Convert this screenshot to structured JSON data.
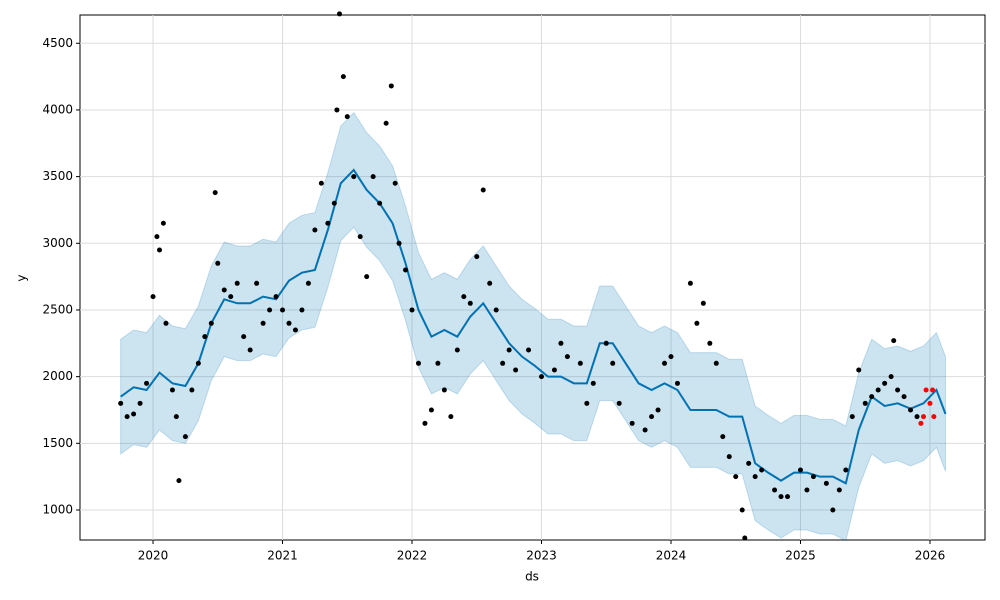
{
  "chart_data": {
    "type": "line",
    "x_label": "ds",
    "y_label": "y",
    "xlim": [
      2019.436,
      2026.425
    ],
    "ylim": [
      775,
      4712
    ],
    "xticks": [
      2020,
      2021,
      2022,
      2023,
      2024,
      2025,
      2026
    ],
    "yticks": [
      1000,
      1500,
      2000,
      2500,
      3000,
      3500,
      4000,
      4500
    ],
    "grid": true,
    "color": "#0072B2",
    "band_color": "#0072B2",
    "point_color": "#000000",
    "recent_color": "#ff0000",
    "x": [
      2019.75,
      2019.85,
      2019.95,
      2020.05,
      2020.15,
      2020.25,
      2020.35,
      2020.45,
      2020.55,
      2020.65,
      2020.75,
      2020.85,
      2020.95,
      2021.05,
      2021.15,
      2021.25,
      2021.35,
      2021.45,
      2021.55,
      2021.65,
      2021.75,
      2021.85,
      2021.95,
      2022.05,
      2022.15,
      2022.25,
      2022.35,
      2022.45,
      2022.55,
      2022.65,
      2022.75,
      2022.85,
      2022.95,
      2023.05,
      2023.15,
      2023.25,
      2023.35,
      2023.45,
      2023.55,
      2023.65,
      2023.75,
      2023.85,
      2023.95,
      2024.05,
      2024.15,
      2024.25,
      2024.35,
      2024.45,
      2024.55,
      2024.65,
      2024.75,
      2024.85,
      2024.95,
      2025.05,
      2025.15,
      2025.25,
      2025.35,
      2025.45,
      2025.55,
      2025.65,
      2025.75,
      2025.85,
      2025.95,
      2026.05,
      2026.12
    ],
    "values": [
      1850,
      1920,
      1900,
      2030,
      1950,
      1930,
      2100,
      2400,
      2580,
      2550,
      2550,
      2600,
      2580,
      2720,
      2780,
      2800,
      3100,
      3450,
      3550,
      3400,
      3300,
      3150,
      2850,
      2500,
      2300,
      2350,
      2300,
      2450,
      2550,
      2400,
      2250,
      2150,
      2080,
      2000,
      2000,
      1950,
      1950,
      2250,
      2250,
      2100,
      1950,
      1900,
      1950,
      1900,
      1750,
      1750,
      1750,
      1700,
      1700,
      1350,
      1280,
      1220,
      1280,
      1280,
      1250,
      1250,
      1200,
      1600,
      1850,
      1780,
      1800,
      1760,
      1800,
      1900,
      1720
    ],
    "lower": [
      1420,
      1490,
      1470,
      1600,
      1520,
      1500,
      1670,
      1970,
      2150,
      2120,
      2120,
      2170,
      2150,
      2290,
      2350,
      2370,
      2670,
      3020,
      3120,
      2970,
      2870,
      2720,
      2420,
      2070,
      1870,
      1920,
      1870,
      2020,
      2120,
      1970,
      1820,
      1720,
      1650,
      1570,
      1570,
      1520,
      1520,
      1820,
      1820,
      1670,
      1520,
      1470,
      1520,
      1470,
      1320,
      1320,
      1320,
      1270,
      1270,
      920,
      850,
      790,
      850,
      850,
      820,
      820,
      770,
      1170,
      1420,
      1350,
      1370,
      1330,
      1370,
      1470,
      1290
    ],
    "upper": [
      2280,
      2350,
      2330,
      2460,
      2380,
      2360,
      2530,
      2830,
      3010,
      2980,
      2980,
      3030,
      3010,
      3150,
      3210,
      3230,
      3530,
      3880,
      3980,
      3830,
      3730,
      3580,
      3280,
      2930,
      2730,
      2780,
      2730,
      2880,
      2980,
      2830,
      2680,
      2580,
      2510,
      2430,
      2430,
      2380,
      2380,
      2680,
      2680,
      2530,
      2380,
      2330,
      2380,
      2330,
      2180,
      2180,
      2180,
      2130,
      2130,
      1780,
      1710,
      1650,
      1710,
      1710,
      1680,
      1680,
      1630,
      2030,
      2280,
      2210,
      2230,
      2190,
      2230,
      2330,
      2150
    ],
    "points": {
      "x": [
        2019.75,
        2019.8,
        2019.85,
        2019.9,
        2019.95,
        2020.0,
        2020.03,
        2020.05,
        2020.08,
        2020.1,
        2020.15,
        2020.18,
        2020.2,
        2020.25,
        2020.3,
        2020.35,
        2020.4,
        2020.45,
        2020.48,
        2020.5,
        2020.55,
        2020.6,
        2020.65,
        2020.7,
        2020.75,
        2020.8,
        2020.85,
        2020.9,
        2020.95,
        2021.0,
        2021.05,
        2021.1,
        2021.15,
        2021.2,
        2021.25,
        2021.3,
        2021.35,
        2021.4,
        2021.42,
        2021.44,
        2021.47,
        2021.5,
        2021.55,
        2021.6,
        2021.65,
        2021.7,
        2021.75,
        2021.8,
        2021.84,
        2021.87,
        2021.9,
        2021.95,
        2022.0,
        2022.05,
        2022.1,
        2022.15,
        2022.2,
        2022.25,
        2022.3,
        2022.35,
        2022.4,
        2022.45,
        2022.5,
        2022.55,
        2022.6,
        2022.65,
        2022.7,
        2022.75,
        2022.8,
        2022.9,
        2023.0,
        2023.1,
        2023.15,
        2023.2,
        2023.3,
        2023.35,
        2023.4,
        2023.5,
        2023.55,
        2023.6,
        2023.7,
        2023.8,
        2023.85,
        2023.9,
        2023.95,
        2024.0,
        2024.05,
        2024.15,
        2024.2,
        2024.25,
        2024.3,
        2024.35,
        2024.4,
        2024.45,
        2024.5,
        2024.55,
        2024.57,
        2024.6,
        2024.65,
        2024.7,
        2024.8,
        2024.85,
        2024.9,
        2025.0,
        2025.05,
        2025.1,
        2025.2,
        2025.25,
        2025.3,
        2025.35,
        2025.4,
        2025.45,
        2025.5,
        2025.55,
        2025.6,
        2025.65,
        2025.7,
        2025.72,
        2025.75,
        2025.8,
        2025.85,
        2025.9
      ],
      "values": [
        1800,
        1700,
        1720,
        1800,
        1950,
        2600,
        3050,
        2950,
        3150,
        2400,
        1900,
        1700,
        1220,
        1550,
        1900,
        2100,
        2300,
        2400,
        3380,
        2850,
        2650,
        2600,
        2700,
        2300,
        2200,
        2700,
        2400,
        2500,
        2600,
        2500,
        2400,
        2350,
        2500,
        2700,
        3100,
        3450,
        3150,
        3300,
        4000,
        4720,
        4250,
        3950,
        3500,
        3050,
        2750,
        3500,
        3300,
        3900,
        4180,
        3450,
        3000,
        2800,
        2500,
        2100,
        1650,
        1750,
        2100,
        1900,
        1700,
        2200,
        2600,
        2550,
        2900,
        3400,
        2700,
        2500,
        2100,
        2200,
        2050,
        2200,
        2000,
        2050,
        2250,
        2150,
        2100,
        1800,
        1950,
        2250,
        2100,
        1800,
        1650,
        1600,
        1700,
        1750,
        2100,
        2150,
        1950,
        2700,
        2400,
        2550,
        2250,
        2100,
        1550,
        1400,
        1250,
        1000,
        790,
        1350,
        1250,
        1300,
        1150,
        1100,
        1100,
        1300,
        1150,
        1250,
        1200,
        1000,
        1150,
        1300,
        1700,
        2050,
        1800,
        1850,
        1900,
        1950,
        2000,
        2270,
        1900,
        1850,
        1750,
        1700
      ]
    },
    "recent": {
      "x": [
        2025.93,
        2025.95,
        2025.97,
        2026.0,
        2026.02,
        2026.03
      ],
      "values": [
        1650,
        1700,
        1900,
        1800,
        1900,
        1700
      ]
    }
  }
}
